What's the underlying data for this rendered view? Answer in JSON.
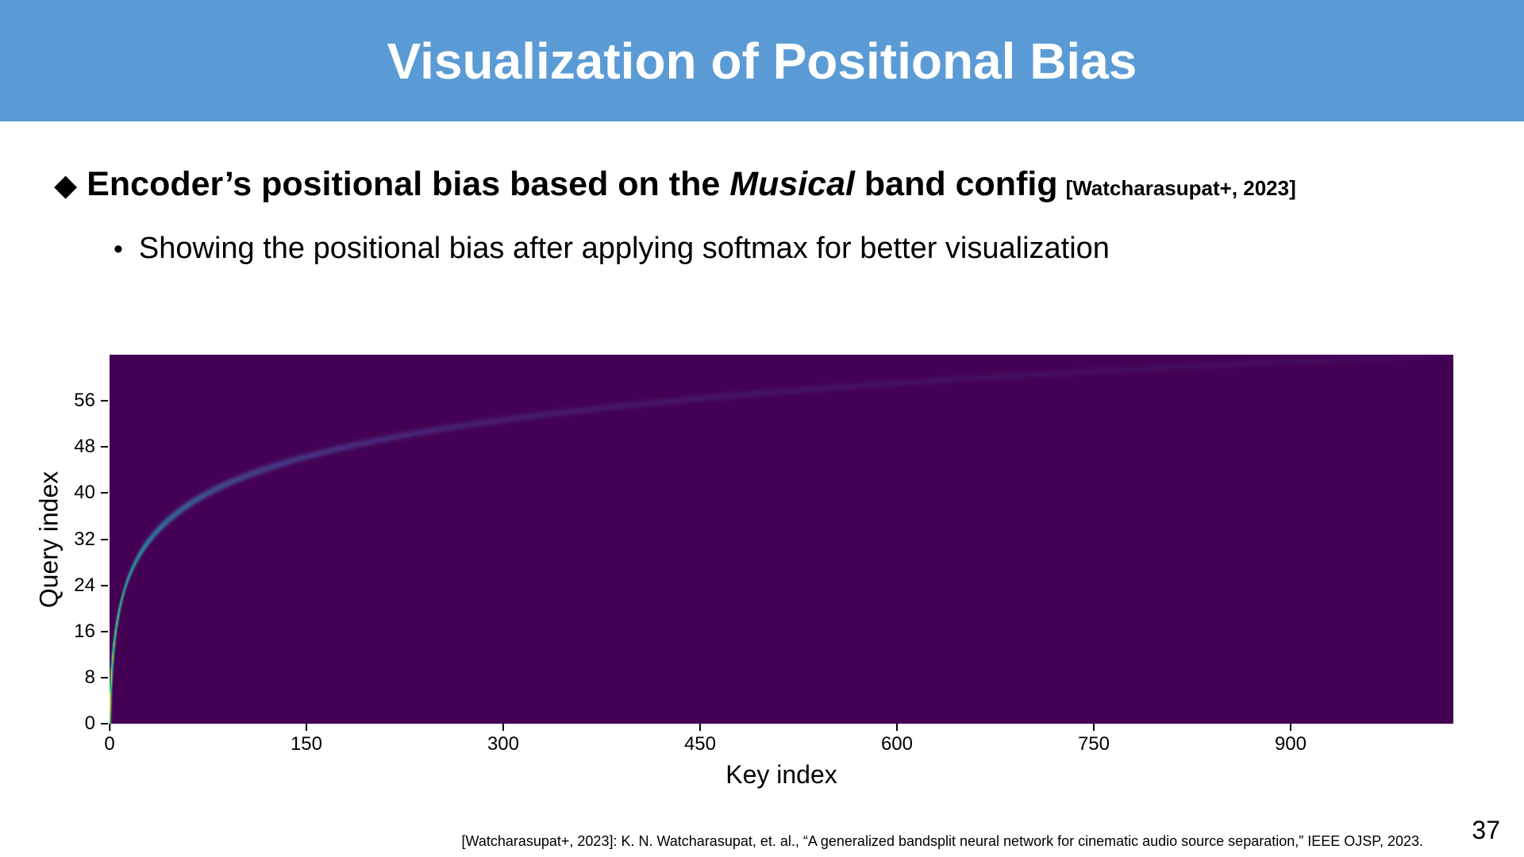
{
  "slide": {
    "title": "Visualization of Positional Bias",
    "page_number": "37",
    "footer_citation": "[Watcharasupat+, 2023]: K. N. Watcharasupat, et. al., “A generalized bandsplit neural network for cinematic audio source separation,” IEEE OJSP, 2023.",
    "colors": {
      "header_bg": "#5B9BD5",
      "title_text": "#FFFFFF",
      "body_text": "#000000",
      "heatmap_bg": "#440154"
    }
  },
  "bullets": {
    "main": {
      "marker": "◆",
      "prefix": "Encoder’s positional bias based on the ",
      "emphasis": "Musical",
      "suffix": " band config",
      "citation": "[Watcharasupat+, 2023]"
    },
    "sub": {
      "marker": "•",
      "text": "Showing the positional bias after applying softmax for better visualization"
    }
  },
  "chart_data": {
    "type": "heatmap",
    "title": "",
    "xlabel": "Key index",
    "ylabel": "Query index",
    "x_range": [
      0,
      1024
    ],
    "y_range": [
      0,
      64
    ],
    "x_ticks": [
      0,
      150,
      300,
      450,
      600,
      750,
      900
    ],
    "y_ticks": [
      0,
      8,
      16,
      24,
      32,
      40,
      48,
      56
    ],
    "colormap": "viridis",
    "legend": "none",
    "grid": false,
    "ridge": {
      "n_queries": 64,
      "n_keys": 1024,
      "log_span": 1025,
      "description": "Softmax positional bias of the encoder. A single bright ridge follows the logarithmic musical band-edge curve k(q) = exp(q/64·ln(1025)) − 1: near key 0 for low query indices, passing key≈150 around query≈46, reaching key≈1024 at the top. Ridge peak intensity ≈ 1/(1+0.35·w) and width σ ≈ max(0.6, 0.45·w) in key units, where w = ln(1025)/64·(k+1), so the line is bright yellow at query 0 and fades through green, teal and blue to near-background purple by query 63. Background is viridis(0) = #440154."
    }
  }
}
